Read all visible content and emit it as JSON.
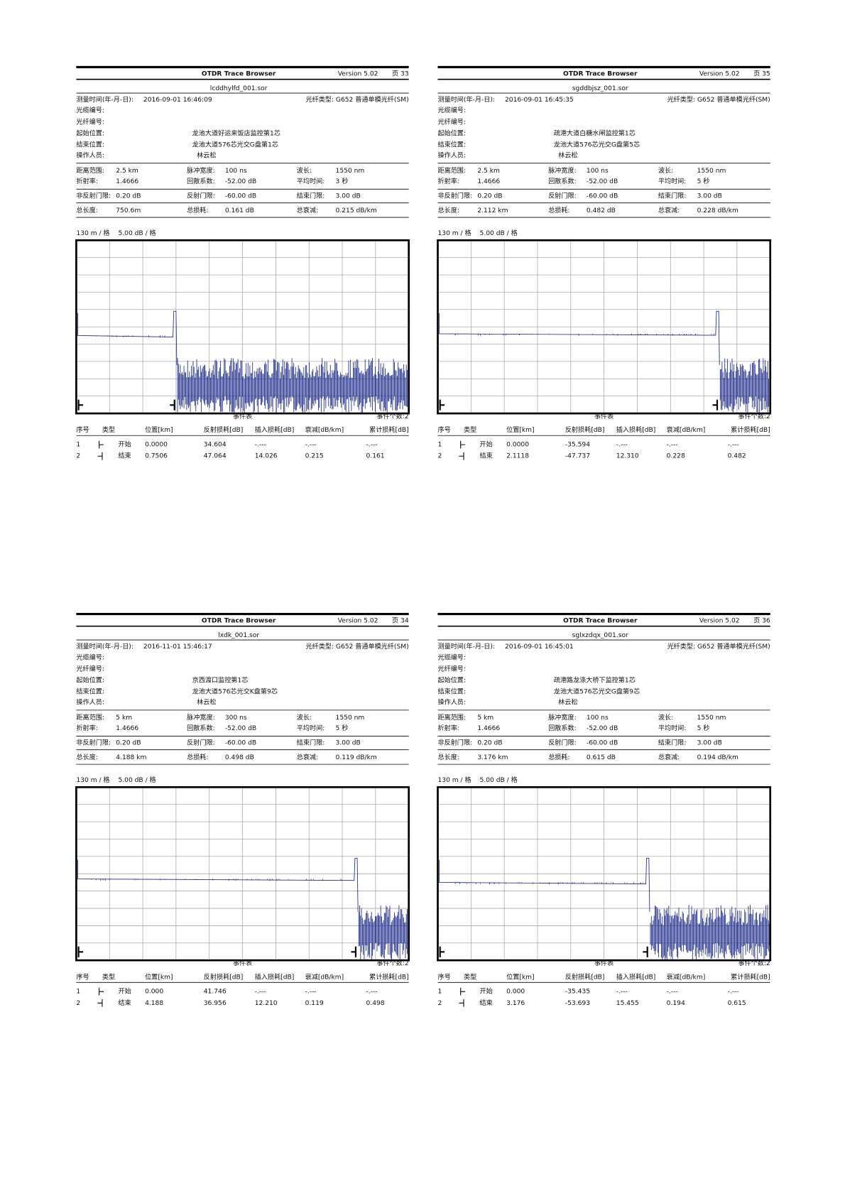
{
  "common": {
    "title": "OTDR Trace Browser",
    "version": "Version 5.02",
    "time_label": "测量时间(年-月-日):",
    "fiber_type": "光纤类型: G652 普通单模光纤(SM)",
    "field_labels": [
      "光缆编号:",
      "光纤编号:",
      "起始位置:",
      "结束位置:",
      "操作人员:"
    ],
    "param_labels": [
      [
        "距离范围:",
        "脉冲宽度:",
        "波长:"
      ],
      [
        "折射率:",
        "回散系数:",
        "平均时间:"
      ],
      [
        "非反射门限:",
        "反射门限:",
        "结束门限:"
      ],
      [
        "总长度:",
        "总损耗:",
        "总衰减:"
      ]
    ],
    "scale_x": "130 m / 格",
    "scale_y": "5.00 dB / 格",
    "event_table": "事件表",
    "event_count": "事件个数:2",
    "columns": [
      "序号",
      "类型",
      "位置[km]",
      "反射损耗[dB]",
      "插入损耗[dB]",
      "衰减[dB/km]",
      "累计损耗[dB]"
    ]
  },
  "panels": [
    {
      "page": "页 33",
      "file": "lcddhylfd_001.sor",
      "time": "2016-09-01  16:46:09",
      "start": "龙池大道好运来饭店监控第1芯",
      "end": "龙池大道576芯光交G盘第1芯",
      "operator": "林云松",
      "params": [
        [
          "2.5 km",
          "100 ns",
          "1550 nm"
        ],
        [
          "1.4666",
          "-52.00 dB",
          "3 秒"
        ],
        [
          "0.20 dB",
          "-60.00 dB",
          "3.00 dB"
        ],
        [
          "750.6m",
          "0.161 dB",
          "0.215 dB/km"
        ]
      ],
      "events": [
        [
          "1",
          "开始",
          "0.0000",
          "34.604",
          "-.---",
          "-.---",
          "-.---"
        ],
        [
          "2",
          "结束",
          "0.7506",
          "47.064",
          "14.026",
          "0.215",
          "0.161"
        ]
      ]
    },
    {
      "page": "页 35",
      "file": "sgddbjsz_001.sor",
      "time": "2016-09-01  16:45:35",
      "start": "疏港大道白糖水闸监控第1芯",
      "end": "龙池大道576芯光交G盘第5芯",
      "operator": "林云松",
      "params": [
        [
          "2.5 km",
          "100 ns",
          "1550 nm"
        ],
        [
          "1.4666",
          "-52.00 dB",
          "5 秒"
        ],
        [
          "0.20 dB",
          "-60.00 dB",
          "3.00 dB"
        ],
        [
          "2.112 km",
          "0.482 dB",
          "0.228 dB/km"
        ]
      ],
      "events": [
        [
          "1",
          "开始",
          "0.0000",
          "-35.594",
          "-.---",
          "-.---",
          "-.---"
        ],
        [
          "2",
          "结束",
          "2.1118",
          "-47.737",
          "12.310",
          "0.228",
          "0.482"
        ]
      ]
    },
    {
      "page": "页 34",
      "file": "lxdk_001.sor",
      "time": "2016-11-01  15:46:17",
      "start": "京西渡口监控第1芯",
      "end": "龙池大道576芯光交K盘第9芯",
      "operator": "林云松",
      "params": [
        [
          "5 km",
          "300 ns",
          "1550 nm"
        ],
        [
          "1.4666",
          "-52.00 dB",
          "5 秒"
        ],
        [
          "0.20 dB",
          "-60.00 dB",
          "3.00 dB"
        ],
        [
          "4.188 km",
          "0.498 dB",
          "0.119 dB/km"
        ]
      ],
      "events": [
        [
          "1",
          "开始",
          "0.000",
          "41.746",
          "-.---",
          "-.---",
          "-.---"
        ],
        [
          "2",
          "结束",
          "4.188",
          "36.956",
          "12.210",
          "0.119",
          "0.498"
        ]
      ]
    },
    {
      "page": "页 36",
      "file": "sglxzdqx_001.sor",
      "time": "2016-09-01  16:45:01",
      "start": "疏港路龙涤大桥下监控第1芯",
      "end": "龙池大道576芯光交G盘第9芯",
      "operator": "林云松",
      "params": [
        [
          "5 km",
          "100 ns",
          "1550 nm"
        ],
        [
          "1.4666",
          "-52.00 dB",
          "5 秒"
        ],
        [
          "0.20 dB",
          "-60.00 dB",
          "3.00 dB"
        ],
        [
          "3.176 km",
          "0.615 dB",
          "0.194 dB/km"
        ]
      ],
      "events": [
        [
          "1",
          "开始",
          "0.000",
          "-35.435",
          "-.---",
          "-.---",
          "-.---"
        ],
        [
          "2",
          "结束",
          "3.176",
          "-53.693",
          "15.455",
          "0.194",
          "0.615"
        ]
      ]
    }
  ]
}
